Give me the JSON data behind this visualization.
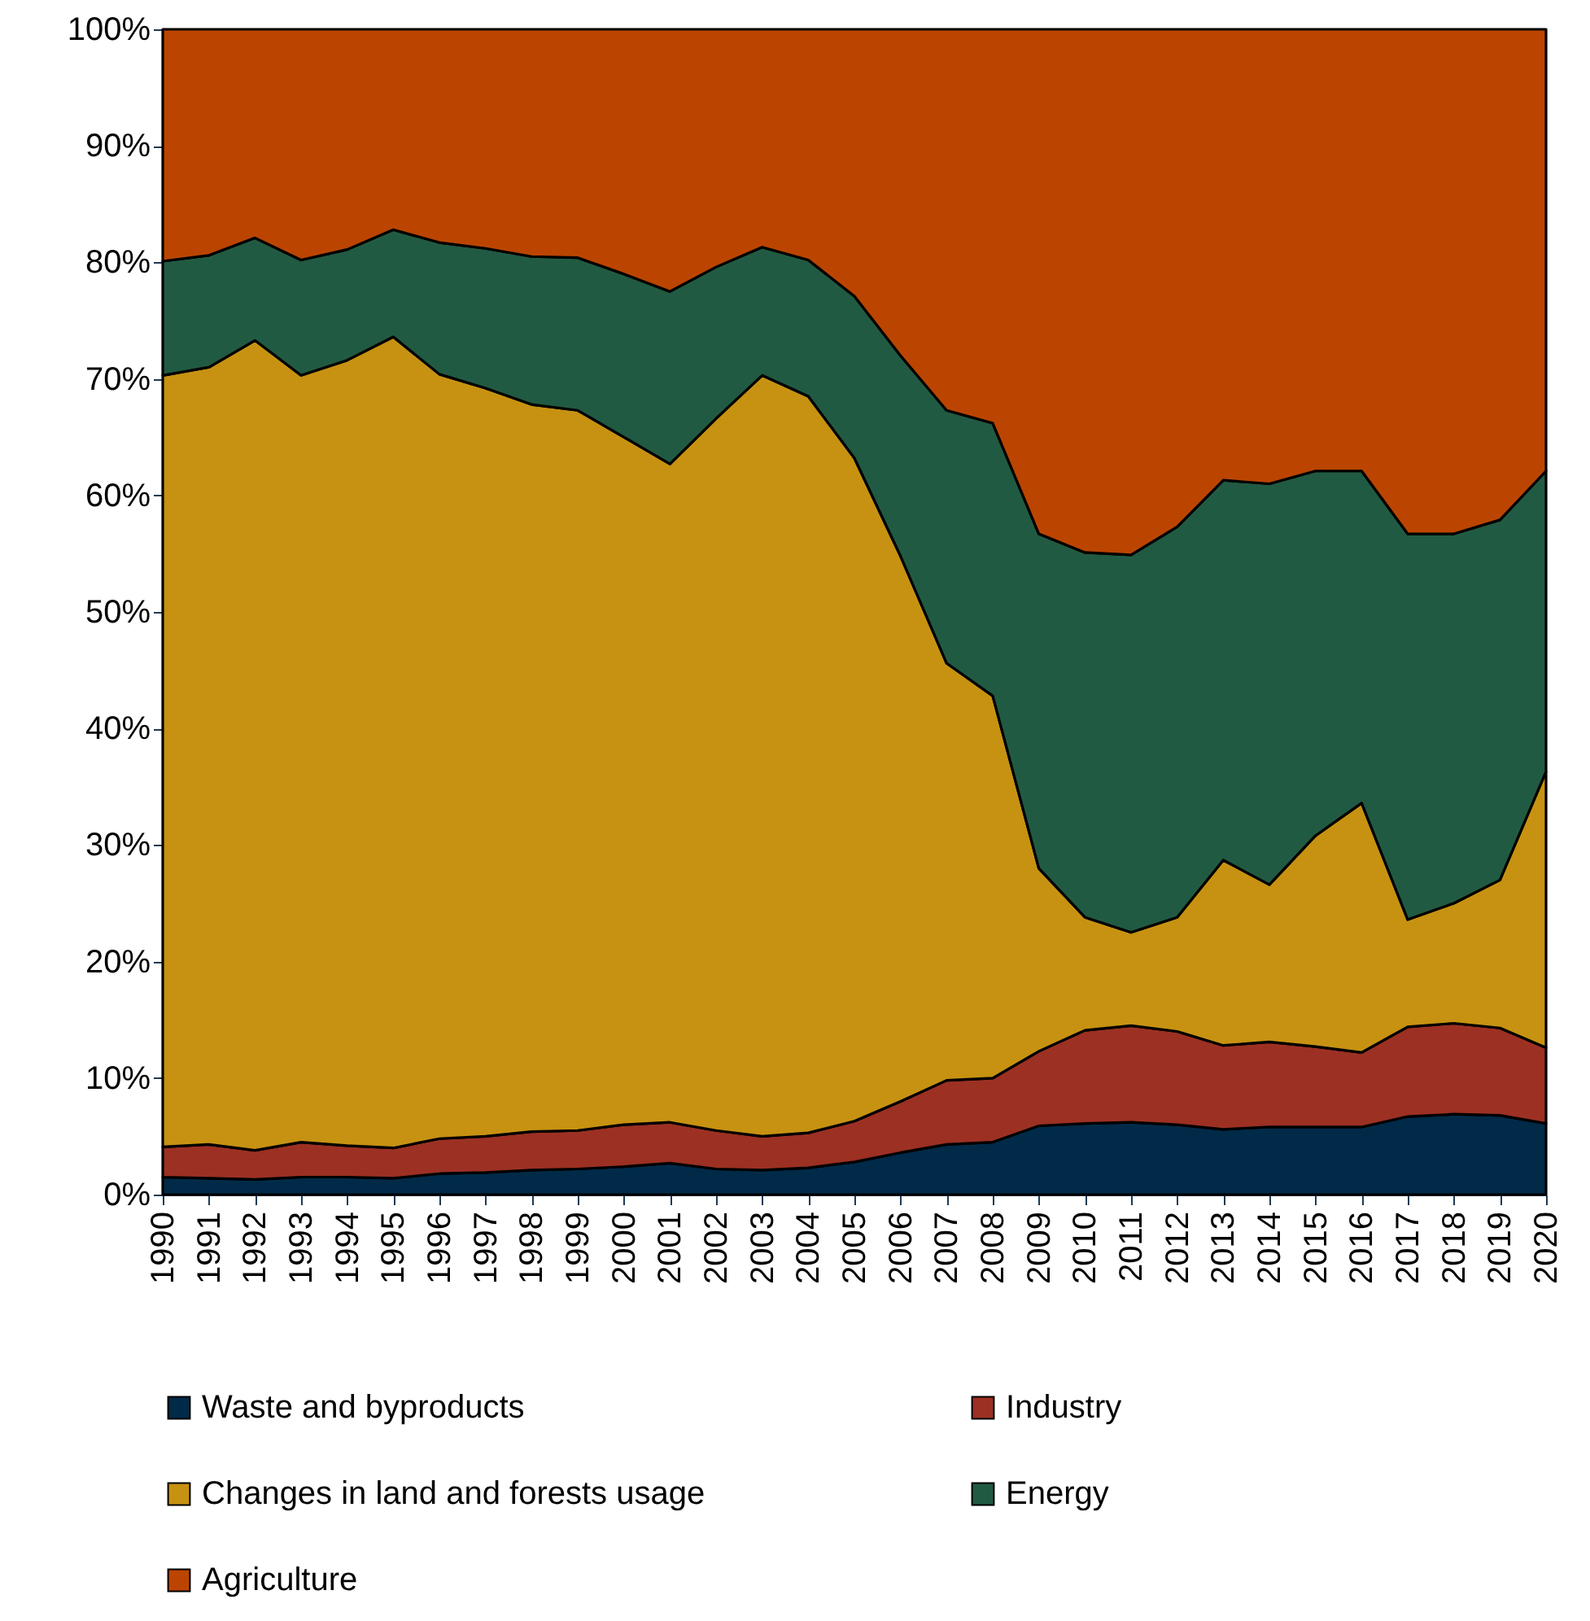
{
  "chart_data": {
    "type": "area",
    "stacked": true,
    "categories": [
      "1990",
      "1991",
      "1992",
      "1993",
      "1994",
      "1995",
      "1996",
      "1997",
      "1998",
      "1999",
      "2000",
      "2001",
      "2002",
      "2003",
      "2004",
      "2005",
      "2006",
      "2007",
      "2008",
      "2009",
      "2010",
      "2011",
      "2012",
      "2013",
      "2014",
      "2015",
      "2016",
      "2017",
      "2018",
      "2019",
      "2020"
    ],
    "series": [
      {
        "name": "Waste and byproducts",
        "color": "#002a48",
        "values": [
          1.5,
          1.4,
          1.3,
          1.5,
          1.5,
          1.4,
          1.8,
          1.9,
          2.1,
          2.2,
          2.4,
          2.7,
          2.2,
          2.1,
          2.3,
          2.8,
          3.6,
          4.3,
          4.5,
          5.9,
          6.1,
          6.2,
          6.0,
          5.6,
          5.8,
          5.8,
          5.8,
          6.7,
          6.9,
          6.8,
          6.1
        ]
      },
      {
        "name": "Industry",
        "color": "#9c3023",
        "values": [
          2.6,
          2.9,
          2.5,
          3.0,
          2.7,
          2.6,
          3.0,
          3.1,
          3.3,
          3.3,
          3.6,
          3.5,
          3.3,
          2.9,
          3.0,
          3.5,
          4.4,
          5.5,
          5.5,
          6.4,
          8.0,
          8.3,
          8.0,
          7.2,
          7.3,
          6.9,
          6.4,
          7.7,
          7.8,
          7.5,
          6.5
        ]
      },
      {
        "name": "Changes in land and forests usage",
        "color": "#c79211",
        "values": [
          66.2,
          66.7,
          69.5,
          65.8,
          67.4,
          69.6,
          65.6,
          64.2,
          62.4,
          61.8,
          59.0,
          56.5,
          61.1,
          65.3,
          63.2,
          56.9,
          46.8,
          35.8,
          32.8,
          15.7,
          9.7,
          8.0,
          9.8,
          15.9,
          13.5,
          18.1,
          21.4,
          9.2,
          10.3,
          12.7,
          23.7
        ]
      },
      {
        "name": "Energy",
        "color": "#215a42",
        "values": [
          9.8,
          9.6,
          8.8,
          9.9,
          9.5,
          9.2,
          11.3,
          12.0,
          12.7,
          13.1,
          14.0,
          14.8,
          13.0,
          11.0,
          11.7,
          13.9,
          17.2,
          21.7,
          23.4,
          28.7,
          31.3,
          32.4,
          33.5,
          32.6,
          34.4,
          31.3,
          28.5,
          33.1,
          31.7,
          30.9,
          25.8
        ]
      },
      {
        "name": "Agriculture",
        "color": "#bb4500",
        "values": [
          19.9,
          19.4,
          17.9,
          19.8,
          18.9,
          17.2,
          18.3,
          18.8,
          19.5,
          19.6,
          21.0,
          22.5,
          20.4,
          18.7,
          19.8,
          22.9,
          28.0,
          32.7,
          33.8,
          43.3,
          44.9,
          45.1,
          42.7,
          38.7,
          39.0,
          37.9,
          37.9,
          43.3,
          43.3,
          42.1,
          37.9
        ]
      }
    ],
    "ylim": [
      0,
      100
    ],
    "yticks": [
      {
        "value": 0,
        "label": "0%"
      },
      {
        "value": 10,
        "label": "10%"
      },
      {
        "value": 20,
        "label": "20%"
      },
      {
        "value": 30,
        "label": "30%"
      },
      {
        "value": 40,
        "label": "40%"
      },
      {
        "value": 50,
        "label": "50%"
      },
      {
        "value": 60,
        "label": "60%"
      },
      {
        "value": 70,
        "label": "70%"
      },
      {
        "value": 80,
        "label": "80%"
      },
      {
        "value": 90,
        "label": "90%"
      },
      {
        "value": 100,
        "label": "100%"
      }
    ],
    "legend": "bottom"
  }
}
